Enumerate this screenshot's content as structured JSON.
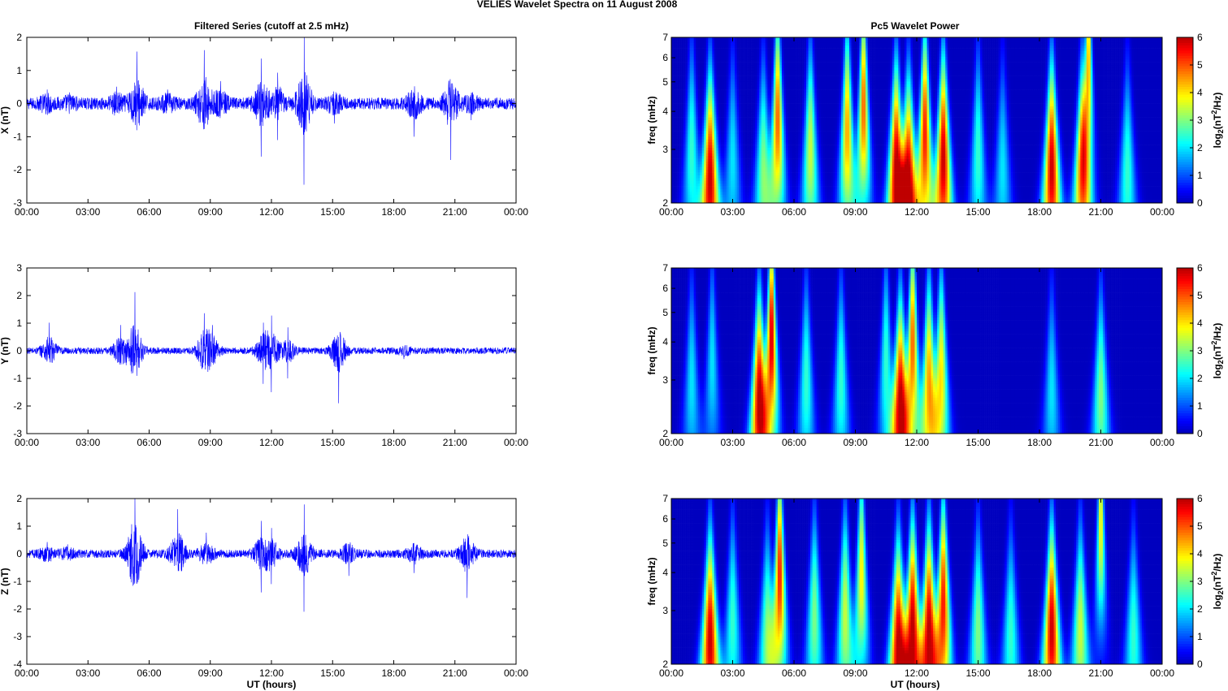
{
  "figure_title": "VELIES Wavelet Spectra on 11 August    2008",
  "colors": {
    "series": "#0000ff",
    "frame": "#000000",
    "grid_bg": "#ffffff"
  },
  "chart_data": [
    {
      "type": "line",
      "title": "Filtered Series (cutoff at 2.5 mHz)",
      "xlabel": "",
      "ylabel": "X (nT)",
      "xticks": [
        "00:00",
        "03:00",
        "06:00",
        "09:00",
        "12:00",
        "15:00",
        "18:00",
        "21:00",
        "00:00"
      ],
      "xlim": [
        0,
        24
      ],
      "ylim": [
        -3,
        2
      ],
      "yticks": [
        -3,
        -2,
        -1,
        0,
        1,
        2
      ],
      "noise_level": 0.18,
      "bursts": [
        {
          "t": 1.0,
          "amp": 0.5
        },
        {
          "t": 2.1,
          "amp": 0.4
        },
        {
          "t": 4.4,
          "amp": 0.6
        },
        {
          "t": 5.4,
          "amp": 1.85
        },
        {
          "t": 6.9,
          "amp": 0.5
        },
        {
          "t": 8.7,
          "amp": 1.9
        },
        {
          "t": 9.5,
          "amp": 0.8
        },
        {
          "t": 11.5,
          "amp": 1.6
        },
        {
          "t": 12.3,
          "amp": 1.1
        },
        {
          "t": 13.6,
          "amp": 2.45
        },
        {
          "t": 15.1,
          "amp": 0.6
        },
        {
          "t": 19.0,
          "amp": 1.0
        },
        {
          "t": 20.8,
          "amp": 1.7
        },
        {
          "t": 21.8,
          "amp": 0.5
        }
      ]
    },
    {
      "type": "heatmap",
      "title": "Pc5 Wavelet Power",
      "xlabel": "",
      "ylabel": "freq (mHz)",
      "xticks": [
        "00:00",
        "03:00",
        "06:00",
        "09:00",
        "12:00",
        "15:00",
        "18:00",
        "21:00",
        "00:00"
      ],
      "xlim": [
        0,
        24
      ],
      "ylim": [
        2,
        7
      ],
      "yscale": "log",
      "yticks": [
        2,
        3,
        4,
        5,
        6,
        7
      ],
      "colorbar_label": "log2(nT^2/Hz)",
      "colorbar_ticks": [
        0,
        1,
        2,
        3,
        4,
        5,
        6
      ],
      "blobs": [
        {
          "t": 1.0,
          "f": 3.0,
          "p": 2.5
        },
        {
          "t": 1.9,
          "f": 2.4,
          "p": 6.0
        },
        {
          "t": 3.0,
          "f": 2.8,
          "p": 2.0
        },
        {
          "t": 4.5,
          "f": 2.6,
          "p": 3.0
        },
        {
          "t": 5.2,
          "f": 3.8,
          "p": 5.0
        },
        {
          "t": 6.8,
          "f": 3.0,
          "p": 3.5
        },
        {
          "t": 8.6,
          "f": 3.5,
          "p": 4.5
        },
        {
          "t": 9.4,
          "f": 4.2,
          "p": 5.0
        },
        {
          "t": 11.0,
          "f": 2.6,
          "p": 6.0
        },
        {
          "t": 11.6,
          "f": 2.3,
          "p": 6.0
        },
        {
          "t": 12.4,
          "f": 3.4,
          "p": 5.5
        },
        {
          "t": 13.3,
          "f": 2.8,
          "p": 6.0
        },
        {
          "t": 15.0,
          "f": 2.9,
          "p": 2.5
        },
        {
          "t": 16.2,
          "f": 2.6,
          "p": 2.0
        },
        {
          "t": 18.6,
          "f": 2.6,
          "p": 6.0
        },
        {
          "t": 20.1,
          "f": 2.6,
          "p": 5.0
        },
        {
          "t": 20.4,
          "f": 6.0,
          "p": 4.5
        },
        {
          "t": 22.3,
          "f": 2.5,
          "p": 2.5
        }
      ]
    },
    {
      "type": "line",
      "title": "",
      "xlabel": "",
      "ylabel": "Y (nT)",
      "xticks": [
        "00:00",
        "03:00",
        "06:00",
        "09:00",
        "12:00",
        "15:00",
        "18:00",
        "21:00",
        "00:00"
      ],
      "xlim": [
        0,
        24
      ],
      "ylim": [
        -3,
        3
      ],
      "yticks": [
        -3,
        -2,
        -1,
        0,
        1,
        2,
        3
      ],
      "noise_level": 0.12,
      "bursts": [
        {
          "t": 1.1,
          "amp": 1.2
        },
        {
          "t": 4.6,
          "amp": 1.1
        },
        {
          "t": 5.3,
          "amp": 2.5
        },
        {
          "t": 8.7,
          "amp": 1.6
        },
        {
          "t": 9.1,
          "amp": 1.1
        },
        {
          "t": 11.6,
          "amp": 1.2
        },
        {
          "t": 12.0,
          "amp": 1.5
        },
        {
          "t": 12.8,
          "amp": 1.0
        },
        {
          "t": 15.3,
          "amp": 1.9
        },
        {
          "t": 18.5,
          "amp": 0.3
        }
      ]
    },
    {
      "type": "heatmap",
      "title": "",
      "xlabel": "",
      "ylabel": "freq (mHz)",
      "xticks": [
        "00:00",
        "03:00",
        "06:00",
        "09:00",
        "12:00",
        "15:00",
        "18:00",
        "21:00",
        "00:00"
      ],
      "xlim": [
        0,
        24
      ],
      "ylim": [
        2,
        7
      ],
      "yscale": "log",
      "yticks": [
        2,
        3,
        4,
        5,
        6,
        7
      ],
      "colorbar_label": "log2(nT^2/Hz)",
      "colorbar_ticks": [
        0,
        1,
        2,
        3,
        4,
        5,
        6
      ],
      "blobs": [
        {
          "t": 1.0,
          "f": 3.0,
          "p": 2.0
        },
        {
          "t": 2.0,
          "f": 3.5,
          "p": 2.0
        },
        {
          "t": 4.3,
          "f": 2.6,
          "p": 6.0
        },
        {
          "t": 4.9,
          "f": 4.2,
          "p": 6.0
        },
        {
          "t": 6.6,
          "f": 3.0,
          "p": 2.5
        },
        {
          "t": 8.3,
          "f": 3.0,
          "p": 2.5
        },
        {
          "t": 10.5,
          "f": 3.5,
          "p": 2.5
        },
        {
          "t": 11.2,
          "f": 2.5,
          "p": 6.0
        },
        {
          "t": 11.8,
          "f": 4.0,
          "p": 5.0
        },
        {
          "t": 12.6,
          "f": 3.0,
          "p": 4.5
        },
        {
          "t": 13.2,
          "f": 3.2,
          "p": 4.0
        },
        {
          "t": 18.6,
          "f": 2.8,
          "p": 2.0
        },
        {
          "t": 21.0,
          "f": 2.7,
          "p": 3.0
        }
      ]
    },
    {
      "type": "line",
      "title": "",
      "xlabel": "UT (hours)",
      "ylabel": "Z (nT)",
      "xticks": [
        "00:00",
        "03:00",
        "06:00",
        "09:00",
        "12:00",
        "15:00",
        "18:00",
        "21:00",
        "00:00"
      ],
      "xlim": [
        0,
        24
      ],
      "ylim": [
        -4,
        2
      ],
      "yticks": [
        -4,
        -3,
        -2,
        -1,
        0,
        1,
        2
      ],
      "noise_level": 0.15,
      "bursts": [
        {
          "t": 1.0,
          "amp": 0.5
        },
        {
          "t": 2.0,
          "amp": 0.4
        },
        {
          "t": 5.3,
          "amp": 3.3
        },
        {
          "t": 7.4,
          "amp": 1.9
        },
        {
          "t": 8.8,
          "amp": 0.9
        },
        {
          "t": 11.5,
          "amp": 1.4
        },
        {
          "t": 12.0,
          "amp": 1.1
        },
        {
          "t": 13.6,
          "amp": 2.1
        },
        {
          "t": 15.8,
          "amp": 0.8
        },
        {
          "t": 19.0,
          "amp": 0.7
        },
        {
          "t": 21.6,
          "amp": 1.6
        }
      ]
    },
    {
      "type": "heatmap",
      "title": "",
      "xlabel": "UT (hours)",
      "ylabel": "freq (mHz)",
      "xticks": [
        "00:00",
        "03:00",
        "06:00",
        "09:00",
        "12:00",
        "15:00",
        "18:00",
        "21:00",
        "00:00"
      ],
      "xlim": [
        0,
        24
      ],
      "ylim": [
        2,
        7
      ],
      "yscale": "log",
      "yticks": [
        2,
        3,
        4,
        5,
        6,
        7
      ],
      "colorbar_label": "log2(nT^2/Hz)",
      "colorbar_ticks": [
        0,
        1,
        2,
        3,
        4,
        5,
        6
      ],
      "blobs": [
        {
          "t": 1.9,
          "f": 2.4,
          "p": 6.0
        },
        {
          "t": 3.0,
          "f": 2.8,
          "p": 2.5
        },
        {
          "t": 4.7,
          "f": 2.5,
          "p": 3.0
        },
        {
          "t": 5.3,
          "f": 4.0,
          "p": 5.5
        },
        {
          "t": 7.0,
          "f": 2.9,
          "p": 3.0
        },
        {
          "t": 8.5,
          "f": 3.0,
          "p": 3.5
        },
        {
          "t": 9.3,
          "f": 4.0,
          "p": 4.0
        },
        {
          "t": 11.1,
          "f": 2.3,
          "p": 6.0
        },
        {
          "t": 11.8,
          "f": 2.7,
          "p": 6.0
        },
        {
          "t": 12.6,
          "f": 2.6,
          "p": 6.0
        },
        {
          "t": 13.3,
          "f": 3.2,
          "p": 5.5
        },
        {
          "t": 15.0,
          "f": 2.6,
          "p": 3.0
        },
        {
          "t": 16.6,
          "f": 2.5,
          "p": 2.5
        },
        {
          "t": 18.6,
          "f": 2.6,
          "p": 6.0
        },
        {
          "t": 20.0,
          "f": 2.6,
          "p": 3.5
        },
        {
          "t": 21.0,
          "f": 6.0,
          "p": 4.0
        },
        {
          "t": 22.6,
          "f": 2.5,
          "p": 2.5
        }
      ]
    }
  ]
}
